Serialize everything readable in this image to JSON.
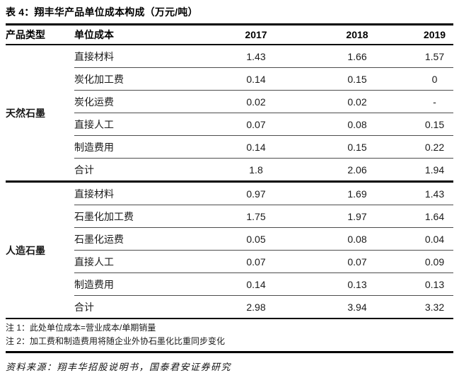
{
  "table": {
    "title": "表 4：翔丰华产品单位成本构成（万元/吨）",
    "columns": [
      "产品类型",
      "单位成本",
      "2017",
      "2018",
      "2019"
    ],
    "groups": [
      {
        "product_type": "天然石墨",
        "rows": [
          {
            "label": "直接材料",
            "values": [
              "1.43",
              "1.66",
              "1.57"
            ]
          },
          {
            "label": "炭化加工费",
            "values": [
              "0.14",
              "0.15",
              "0"
            ]
          },
          {
            "label": "炭化运费",
            "values": [
              "0.02",
              "0.02",
              "-"
            ]
          },
          {
            "label": "直接人工",
            "values": [
              "0.07",
              "0.08",
              "0.15"
            ]
          },
          {
            "label": "制造费用",
            "values": [
              "0.14",
              "0.15",
              "0.22"
            ]
          },
          {
            "label": "合计",
            "values": [
              "1.8",
              "2.06",
              "1.94"
            ]
          }
        ]
      },
      {
        "product_type": "人造石墨",
        "rows": [
          {
            "label": "直接材料",
            "values": [
              "0.97",
              "1.69",
              "1.43"
            ]
          },
          {
            "label": "石墨化加工费",
            "values": [
              "1.75",
              "1.97",
              "1.64"
            ]
          },
          {
            "label": "石墨化运费",
            "values": [
              "0.05",
              "0.08",
              "0.04"
            ]
          },
          {
            "label": "直接人工",
            "values": [
              "0.07",
              "0.07",
              "0.09"
            ]
          },
          {
            "label": "制造费用",
            "values": [
              "0.14",
              "0.13",
              "0.13"
            ]
          },
          {
            "label": "合计",
            "values": [
              "2.98",
              "3.94",
              "3.32"
            ]
          }
        ]
      }
    ],
    "notes": [
      "注 1：此处单位成本=营业成本/单期销量",
      "注 2：加工费和制造费用将随企业外协石墨化比重同步变化"
    ],
    "source": "资料来源：翔丰华招股说明书，国泰君安证券研究"
  },
  "colors": {
    "background": "#ffffff",
    "text": "#1a1a1a",
    "rule": "#000000"
  }
}
